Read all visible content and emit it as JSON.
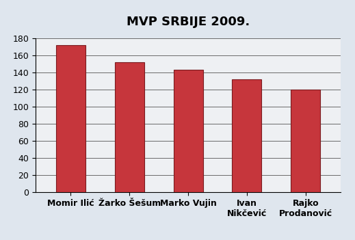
{
  "chart_data": {
    "type": "bar",
    "title": "MVP SRBIJE 2009.",
    "categories": [
      "Momir Ilić",
      "Žarko Šešum",
      "Marko Vujin",
      "Ivan Nikčević",
      "Rajko Prodanović"
    ],
    "values": [
      172,
      152,
      143,
      132,
      120
    ],
    "color": "#c6363c",
    "ylim": [
      0,
      180
    ],
    "yticks": [
      0,
      20,
      40,
      60,
      80,
      100,
      120,
      140,
      160,
      180
    ],
    "grid": true
  }
}
